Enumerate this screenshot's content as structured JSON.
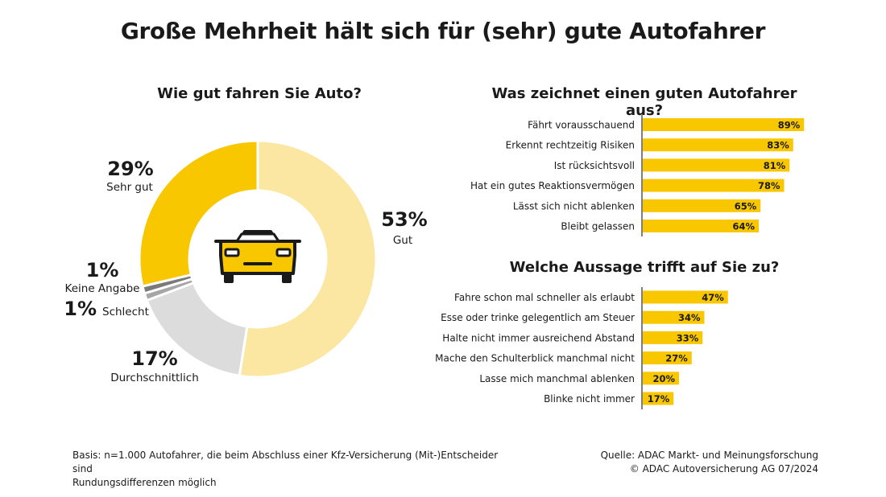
{
  "title": "Große Mehrheit hält sich für (sehr) gute Autofahrer",
  "footer": {
    "basis_line1": "Basis: n=1.000 Autofahrer, die beim Abschluss einer Kfz-Versicherung (Mit-)Entscheider sind",
    "basis_line2": "Rundungsdifferenzen möglich",
    "source_line1": "Quelle: ADAC Markt- und Meinungsforschung",
    "source_line2": "© ADAC Autoversicherung AG 07/2024"
  },
  "colors": {
    "accent": "#F8C700",
    "light_yellow": "#FBE7A1",
    "light_grey": "#DCDCDC",
    "grey": "#A6A6A6",
    "dark_grey": "#7A7A7A",
    "axis": "#555555",
    "car_outline": "#1a1a1a"
  },
  "icons": {
    "center": "car-icon"
  },
  "chart_data": [
    {
      "type": "pie",
      "donut": true,
      "title": "Wie gut fahren Sie Auto?",
      "slices": [
        {
          "label": "Gut",
          "value": 53,
          "display": "53%",
          "color": "#FBE7A1"
        },
        {
          "label": "Durchschnittlich",
          "value": 17,
          "display": "17%",
          "color": "#DCDCDC"
        },
        {
          "label": "Schlecht",
          "value": 1,
          "display": "1%",
          "color": "#A6A6A6"
        },
        {
          "label": "Keine Angabe",
          "value": 1,
          "display": "1%",
          "color": "#7A7A7A"
        },
        {
          "label": "Sehr gut",
          "value": 29,
          "display": "29%",
          "color": "#F8C700"
        }
      ]
    },
    {
      "type": "bar",
      "orientation": "horizontal",
      "title": "Was zeichnet einen guten Autofahrer aus?",
      "categories": [
        "Fährt vorausschauend",
        "Erkennt rechtzeitig Risiken",
        "Ist rücksichtsvoll",
        "Hat ein gutes Reaktionsvermögen",
        "Lässt sich nicht ablenken",
        "Bleibt gelassen"
      ],
      "values": [
        89,
        83,
        81,
        78,
        65,
        64
      ],
      "value_labels": [
        "89%",
        "83%",
        "81%",
        "78%",
        "65%",
        "64%"
      ]
    },
    {
      "type": "bar",
      "orientation": "horizontal",
      "title": "Welche Aussage trifft auf Sie zu?",
      "categories": [
        "Fahre schon mal schneller als erlaubt",
        "Esse oder trinke gelegentlich am Steuer",
        "Halte nicht immer ausreichend Abstand",
        "Mache den Schulterblick manchmal nicht",
        "Lasse mich manchmal ablenken",
        "Blinke nicht immer"
      ],
      "values": [
        47,
        34,
        33,
        27,
        20,
        17
      ],
      "value_labels": [
        "47%",
        "34%",
        "33%",
        "27%",
        "20%",
        "17%"
      ]
    }
  ]
}
